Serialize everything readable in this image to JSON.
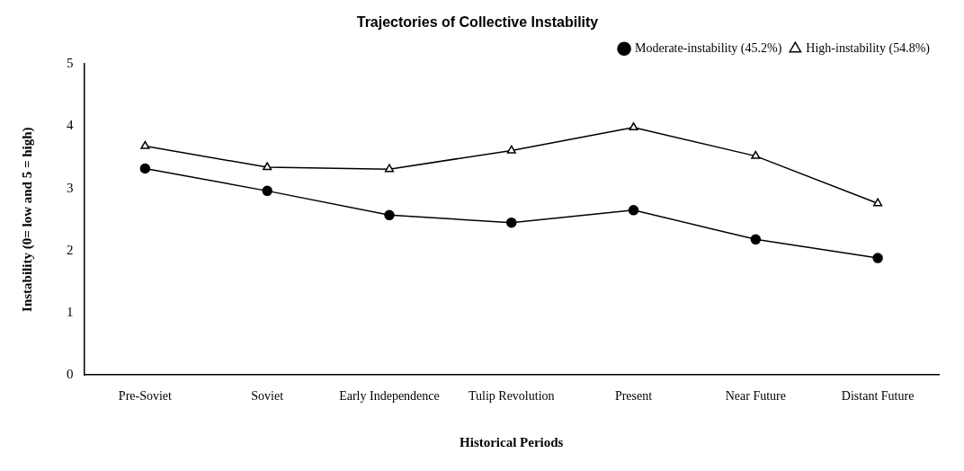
{
  "chart_data": {
    "type": "line",
    "title": "Trajectories of Collective Instability",
    "xlabel": "Historical Periods",
    "ylabel": "Instability (0= low and 5 = high)",
    "categories": [
      "Pre-Soviet",
      "Soviet",
      "Early Independence",
      "Tulip Revolution",
      "Present",
      "Near Future",
      "Distant Future"
    ],
    "series": [
      {
        "name": "Moderate-instability (45.2%)",
        "color": "#000000",
        "marker": "circle",
        "values": [
          3.32,
          2.96,
          2.57,
          2.45,
          2.65,
          2.18,
          1.88
        ]
      },
      {
        "name": "High-instability (54.8%)",
        "color": "#000000",
        "marker": "triangle",
        "values": [
          3.68,
          3.34,
          3.31,
          3.61,
          3.98,
          3.52,
          2.76
        ]
      }
    ],
    "ylim": [
      0,
      5
    ],
    "yticks": [
      0,
      1,
      2,
      3,
      4,
      5
    ],
    "grid": false,
    "legend": "top right"
  }
}
